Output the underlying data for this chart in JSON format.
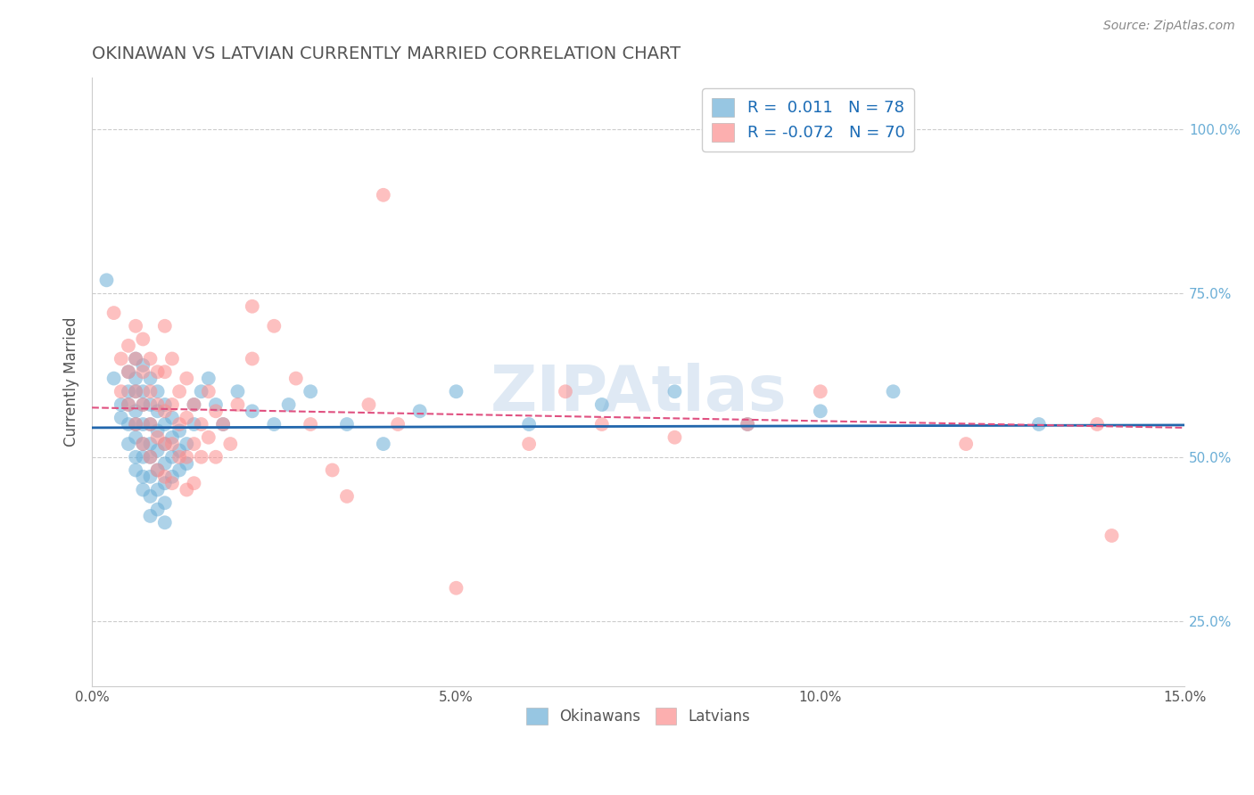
{
  "title": "OKINAWAN VS LATVIAN CURRENTLY MARRIED CORRELATION CHART",
  "source_text": "Source: ZipAtlas.com",
  "xlabel": "",
  "ylabel": "Currently Married",
  "xlim": [
    0.0,
    0.15
  ],
  "ylim": [
    0.15,
    1.08
  ],
  "xticks": [
    0.0,
    0.05,
    0.1,
    0.15
  ],
  "xticklabels": [
    "0.0%",
    "5.0%",
    "10.0%",
    "15.0%"
  ],
  "yticks_right": [
    0.25,
    0.5,
    0.75,
    1.0
  ],
  "yticklabels_right": [
    "25.0%",
    "50.0%",
    "75.0%",
    "100.0%"
  ],
  "okinawan_color": "#6baed6",
  "latvian_color": "#fc8d8d",
  "okinawan_R": 0.011,
  "okinawan_N": 78,
  "latvian_R": -0.072,
  "latvian_N": 70,
  "legend_label1": "Okinawans",
  "legend_label2": "Latvians",
  "watermark": "ZIPAtlas",
  "background_color": "#ffffff",
  "grid_color": "#cccccc",
  "title_color": "#555555",
  "okinawan_scatter": [
    [
      0.002,
      0.77
    ],
    [
      0.003,
      0.62
    ],
    [
      0.004,
      0.58
    ],
    [
      0.004,
      0.56
    ],
    [
      0.005,
      0.63
    ],
    [
      0.005,
      0.6
    ],
    [
      0.005,
      0.58
    ],
    [
      0.005,
      0.55
    ],
    [
      0.005,
      0.52
    ],
    [
      0.006,
      0.65
    ],
    [
      0.006,
      0.62
    ],
    [
      0.006,
      0.6
    ],
    [
      0.006,
      0.57
    ],
    [
      0.006,
      0.55
    ],
    [
      0.006,
      0.53
    ],
    [
      0.006,
      0.5
    ],
    [
      0.006,
      0.48
    ],
    [
      0.007,
      0.64
    ],
    [
      0.007,
      0.6
    ],
    [
      0.007,
      0.58
    ],
    [
      0.007,
      0.55
    ],
    [
      0.007,
      0.52
    ],
    [
      0.007,
      0.5
    ],
    [
      0.007,
      0.47
    ],
    [
      0.007,
      0.45
    ],
    [
      0.008,
      0.62
    ],
    [
      0.008,
      0.58
    ],
    [
      0.008,
      0.55
    ],
    [
      0.008,
      0.52
    ],
    [
      0.008,
      0.5
    ],
    [
      0.008,
      0.47
    ],
    [
      0.008,
      0.44
    ],
    [
      0.008,
      0.41
    ],
    [
      0.009,
      0.6
    ],
    [
      0.009,
      0.57
    ],
    [
      0.009,
      0.54
    ],
    [
      0.009,
      0.51
    ],
    [
      0.009,
      0.48
    ],
    [
      0.009,
      0.45
    ],
    [
      0.009,
      0.42
    ],
    [
      0.01,
      0.58
    ],
    [
      0.01,
      0.55
    ],
    [
      0.01,
      0.52
    ],
    [
      0.01,
      0.49
    ],
    [
      0.01,
      0.46
    ],
    [
      0.01,
      0.43
    ],
    [
      0.01,
      0.4
    ],
    [
      0.011,
      0.56
    ],
    [
      0.011,
      0.53
    ],
    [
      0.011,
      0.5
    ],
    [
      0.011,
      0.47
    ],
    [
      0.012,
      0.54
    ],
    [
      0.012,
      0.51
    ],
    [
      0.012,
      0.48
    ],
    [
      0.013,
      0.52
    ],
    [
      0.013,
      0.49
    ],
    [
      0.014,
      0.58
    ],
    [
      0.014,
      0.55
    ],
    [
      0.015,
      0.6
    ],
    [
      0.016,
      0.62
    ],
    [
      0.017,
      0.58
    ],
    [
      0.018,
      0.55
    ],
    [
      0.02,
      0.6
    ],
    [
      0.022,
      0.57
    ],
    [
      0.025,
      0.55
    ],
    [
      0.027,
      0.58
    ],
    [
      0.03,
      0.6
    ],
    [
      0.035,
      0.55
    ],
    [
      0.04,
      0.52
    ],
    [
      0.045,
      0.57
    ],
    [
      0.05,
      0.6
    ],
    [
      0.06,
      0.55
    ],
    [
      0.07,
      0.58
    ],
    [
      0.08,
      0.6
    ],
    [
      0.09,
      0.55
    ],
    [
      0.1,
      0.57
    ],
    [
      0.11,
      0.6
    ],
    [
      0.13,
      0.55
    ]
  ],
  "latvian_scatter": [
    [
      0.003,
      0.72
    ],
    [
      0.004,
      0.65
    ],
    [
      0.004,
      0.6
    ],
    [
      0.005,
      0.67
    ],
    [
      0.005,
      0.63
    ],
    [
      0.005,
      0.58
    ],
    [
      0.006,
      0.7
    ],
    [
      0.006,
      0.65
    ],
    [
      0.006,
      0.6
    ],
    [
      0.006,
      0.55
    ],
    [
      0.007,
      0.68
    ],
    [
      0.007,
      0.63
    ],
    [
      0.007,
      0.58
    ],
    [
      0.007,
      0.52
    ],
    [
      0.008,
      0.65
    ],
    [
      0.008,
      0.6
    ],
    [
      0.008,
      0.55
    ],
    [
      0.008,
      0.5
    ],
    [
      0.009,
      0.63
    ],
    [
      0.009,
      0.58
    ],
    [
      0.009,
      0.53
    ],
    [
      0.009,
      0.48
    ],
    [
      0.01,
      0.7
    ],
    [
      0.01,
      0.63
    ],
    [
      0.01,
      0.57
    ],
    [
      0.01,
      0.52
    ],
    [
      0.01,
      0.47
    ],
    [
      0.011,
      0.65
    ],
    [
      0.011,
      0.58
    ],
    [
      0.011,
      0.52
    ],
    [
      0.011,
      0.46
    ],
    [
      0.012,
      0.6
    ],
    [
      0.012,
      0.55
    ],
    [
      0.012,
      0.5
    ],
    [
      0.013,
      0.62
    ],
    [
      0.013,
      0.56
    ],
    [
      0.013,
      0.5
    ],
    [
      0.013,
      0.45
    ],
    [
      0.014,
      0.58
    ],
    [
      0.014,
      0.52
    ],
    [
      0.014,
      0.46
    ],
    [
      0.015,
      0.55
    ],
    [
      0.015,
      0.5
    ],
    [
      0.016,
      0.6
    ],
    [
      0.016,
      0.53
    ],
    [
      0.017,
      0.57
    ],
    [
      0.017,
      0.5
    ],
    [
      0.018,
      0.55
    ],
    [
      0.019,
      0.52
    ],
    [
      0.02,
      0.58
    ],
    [
      0.022,
      0.65
    ],
    [
      0.022,
      0.73
    ],
    [
      0.025,
      0.7
    ],
    [
      0.028,
      0.62
    ],
    [
      0.03,
      0.55
    ],
    [
      0.033,
      0.48
    ],
    [
      0.035,
      0.44
    ],
    [
      0.038,
      0.58
    ],
    [
      0.04,
      0.9
    ],
    [
      0.042,
      0.55
    ],
    [
      0.05,
      0.3
    ],
    [
      0.06,
      0.52
    ],
    [
      0.065,
      0.6
    ],
    [
      0.07,
      0.55
    ],
    [
      0.08,
      0.53
    ],
    [
      0.09,
      0.55
    ],
    [
      0.1,
      0.6
    ],
    [
      0.12,
      0.52
    ],
    [
      0.138,
      0.55
    ],
    [
      0.14,
      0.38
    ]
  ]
}
